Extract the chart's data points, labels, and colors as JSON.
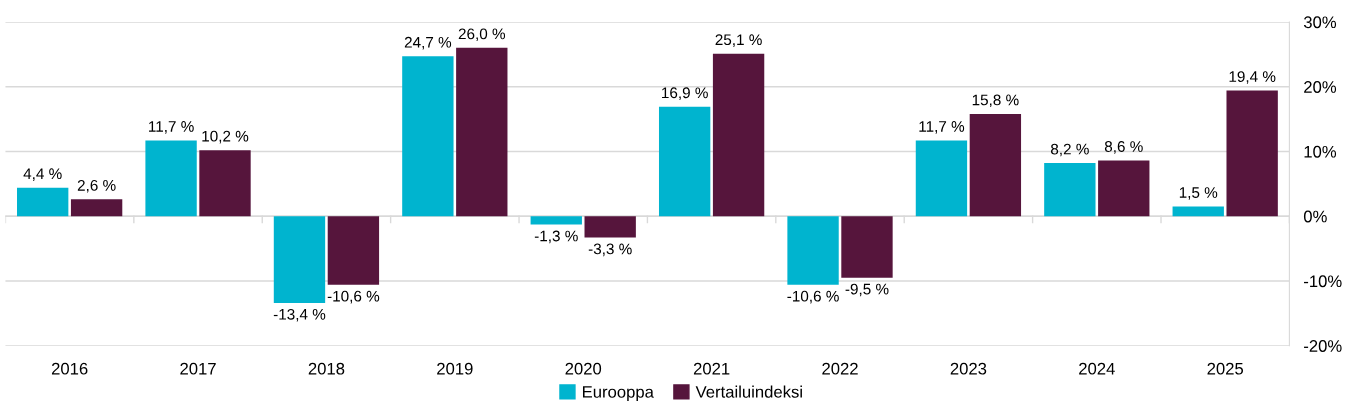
{
  "chart_data": {
    "type": "bar",
    "categories": [
      "2016",
      "2017",
      "2018",
      "2019",
      "2020",
      "2021",
      "2022",
      "2023",
      "2024",
      "2025"
    ],
    "series": [
      {
        "name": "Eurooppa",
        "color": "#00b4cf",
        "values": [
          4.4,
          11.7,
          -13.4,
          24.7,
          -1.3,
          16.9,
          -10.6,
          11.7,
          8.2,
          1.5
        ],
        "value_labels": [
          "4,4 %",
          "11,7 %",
          "-13,4 %",
          "24,7 %",
          "-1,3 %",
          "16,9 %",
          "-10,6 %",
          "11,7 %",
          "8,2 %",
          "1,5 %"
        ]
      },
      {
        "name": "Vertailuindeksi",
        "color": "#56153c",
        "values": [
          2.6,
          10.2,
          -10.6,
          26.0,
          -3.3,
          25.1,
          -9.5,
          15.8,
          8.6,
          19.4
        ],
        "value_labels": [
          "2,6 %",
          "10,2 %",
          "-10,6 %",
          "26,0 %",
          "-3,3 %",
          "25,1 %",
          "-9,5 %",
          "15,8 %",
          "8,6 %",
          "19,4 %"
        ]
      }
    ],
    "ylim": [
      -20,
      30
    ],
    "yticks": [
      {
        "value": -20,
        "label": "-20%"
      },
      {
        "value": -10,
        "label": "-10%"
      },
      {
        "value": 0,
        "label": "0%"
      },
      {
        "value": 10,
        "label": "10%"
      },
      {
        "value": 20,
        "label": "20%"
      },
      {
        "value": 30,
        "label": "30%"
      }
    ],
    "grid": "y",
    "legend": "bottom"
  }
}
